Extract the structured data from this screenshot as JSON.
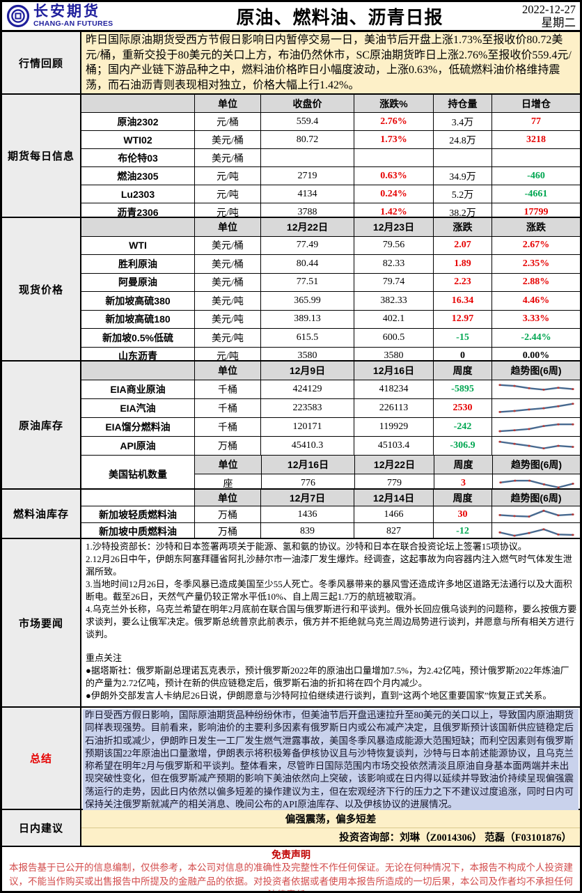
{
  "meta": {
    "brand_name": "长安期货",
    "brand_name_en": "CHANG-AN FUTURES",
    "title": "原油、燃料油、沥青日报",
    "date": "2022-12-27",
    "weekday": "星期二"
  },
  "colors": {
    "up_red": "#e60000",
    "down_green": "#00a651",
    "brand_blue": "#1f1f9c",
    "yellow_bg": "#fdf0c8",
    "header_grey": "#d9d9d9",
    "summary_highlight": "#c9d2ec",
    "spark_line": "#47698f",
    "spark_marker": "#b03a3a",
    "disclaimer_red": "#c00000"
  },
  "review": {
    "label": "行情回顾",
    "text": "昨日国际原油期货受西方节假日影响日内暂停交易一日，美油节后开盘上涨1.73%至报收价80.72美元/桶，重新交投于80美元的关口上方，布油仍然休市，SC原油期货昨日上涨2.76%至报收价559.4元/桶；国内产业链下游品种之中，燃料油价格昨日小幅度波动，上涨0.63%，低硫燃料油价格维持震荡，而石油沥青则表现相对独立，价格大幅上行1.42%。"
  },
  "futures": {
    "label": "期货每日信息",
    "rows": [
      [
        {
          "t": "",
          "h": 1
        },
        {
          "t": "单位",
          "h": 1
        },
        {
          "t": "收盘价",
          "h": 1
        },
        {
          "t": "涨跌%",
          "h": 1
        },
        {
          "t": "持仓量",
          "h": 1
        },
        {
          "t": "日增仓",
          "h": 1
        }
      ],
      [
        {
          "t": "原油2302",
          "n": 1
        },
        {
          "t": "元/桶"
        },
        {
          "t": "559.4"
        },
        {
          "t": "2.76%",
          "c": "up"
        },
        {
          "t": "3.4万"
        },
        {
          "t": "77",
          "c": "up"
        }
      ],
      [
        {
          "t": "WTI02",
          "n": 1
        },
        {
          "t": "美元/桶"
        },
        {
          "t": "80.72"
        },
        {
          "t": "1.73%",
          "c": "up"
        },
        {
          "t": "24.8万"
        },
        {
          "t": "3218",
          "c": "up"
        }
      ],
      [
        {
          "t": "布伦特03",
          "n": 1
        },
        {
          "t": "美元/桶"
        },
        {
          "t": ""
        },
        {
          "t": ""
        },
        {
          "t": ""
        },
        {
          "t": ""
        }
      ],
      [
        {
          "t": "燃油2305",
          "n": 1
        },
        {
          "t": "元/吨"
        },
        {
          "t": "2719"
        },
        {
          "t": "0.63%",
          "c": "up"
        },
        {
          "t": "34.9万"
        },
        {
          "t": "-460",
          "c": "down"
        }
      ],
      [
        {
          "t": "Lu2303",
          "n": 1
        },
        {
          "t": "元/吨"
        },
        {
          "t": "4134"
        },
        {
          "t": "0.24%",
          "c": "up"
        },
        {
          "t": "5.2万"
        },
        {
          "t": "-4661",
          "c": "down"
        }
      ],
      [
        {
          "t": "沥青2306",
          "n": 1
        },
        {
          "t": "元/吨"
        },
        {
          "t": "3788"
        },
        {
          "t": "1.42%",
          "c": "up"
        },
        {
          "t": "38.2万"
        },
        {
          "t": "17799",
          "c": "up"
        }
      ]
    ]
  },
  "spot": {
    "label": "现货价格",
    "rows": [
      [
        {
          "t": "",
          "h": 1
        },
        {
          "t": "单位",
          "h": 1
        },
        {
          "t": "12月22日",
          "h": 1
        },
        {
          "t": "12月23日",
          "h": 1
        },
        {
          "t": "涨跌",
          "h": 1
        },
        {
          "t": "涨跌",
          "h": 1
        }
      ],
      [
        {
          "t": "WTI",
          "n": 1
        },
        {
          "t": "美元/桶"
        },
        {
          "t": "77.49"
        },
        {
          "t": "79.56"
        },
        {
          "t": "2.07",
          "c": "up"
        },
        {
          "t": "2.67%",
          "c": "up"
        }
      ],
      [
        {
          "t": "胜利原油",
          "n": 1
        },
        {
          "t": "美元/桶"
        },
        {
          "t": "80.44"
        },
        {
          "t": "82.33"
        },
        {
          "t": "1.89",
          "c": "up"
        },
        {
          "t": "2.35%",
          "c": "up"
        }
      ],
      [
        {
          "t": "阿曼原油",
          "n": 1
        },
        {
          "t": "美元/桶"
        },
        {
          "t": "77.51"
        },
        {
          "t": "79.74"
        },
        {
          "t": "2.23",
          "c": "up"
        },
        {
          "t": "2.88%",
          "c": "up"
        }
      ],
      [
        {
          "t": "新加坡高硫380",
          "n": 1
        },
        {
          "t": "美元/吨"
        },
        {
          "t": "365.99"
        },
        {
          "t": "382.33"
        },
        {
          "t": "16.34",
          "c": "up"
        },
        {
          "t": "4.46%",
          "c": "up"
        }
      ],
      [
        {
          "t": "新加坡高硫180",
          "n": 1
        },
        {
          "t": "美元/吨"
        },
        {
          "t": "389.13"
        },
        {
          "t": "402.1"
        },
        {
          "t": "12.97",
          "c": "up"
        },
        {
          "t": "3.33%",
          "c": "up"
        }
      ],
      [
        {
          "t": "新加坡0.5%低硫",
          "n": 1
        },
        {
          "t": "美元/吨"
        },
        {
          "t": "615.5"
        },
        {
          "t": "600.5"
        },
        {
          "t": "-15",
          "c": "down"
        },
        {
          "t": "-2.44%",
          "c": "down"
        }
      ],
      [
        {
          "t": "山东沥青",
          "n": 1
        },
        {
          "t": "元/吨"
        },
        {
          "t": "3580"
        },
        {
          "t": "3580"
        },
        {
          "t": "0",
          "c": "flat"
        },
        {
          "t": "0.00%",
          "c": "flat"
        }
      ]
    ]
  },
  "crude_inventory": {
    "label": "原油库存",
    "rows": [
      [
        {
          "t": "",
          "h": 1
        },
        {
          "t": "单位",
          "h": 1
        },
        {
          "t": "12月9日",
          "h": 1
        },
        {
          "t": "12月16日",
          "h": 1
        },
        {
          "t": "周度",
          "h": 1
        },
        {
          "t": "趋势图(6周)",
          "h": 1
        }
      ],
      [
        {
          "t": "EIA商业原油",
          "n": 1
        },
        {
          "t": "千桶"
        },
        {
          "t": "424129"
        },
        {
          "t": "418234"
        },
        {
          "t": "-5895",
          "c": "down"
        },
        {
          "spark": [
            88,
            80,
            62,
            50,
            65,
            55
          ]
        }
      ],
      [
        {
          "t": "EIA汽油",
          "n": 1
        },
        {
          "t": "千桶"
        },
        {
          "t": "223583"
        },
        {
          "t": "226113"
        },
        {
          "t": "2530",
          "c": "up"
        },
        {
          "spark": [
            22,
            30,
            42,
            52,
            68,
            88
          ]
        }
      ],
      [
        {
          "t": "EIA馏分燃料油",
          "n": 1
        },
        {
          "t": "千桶"
        },
        {
          "t": "120171"
        },
        {
          "t": "119929"
        },
        {
          "t": "-242",
          "c": "down"
        },
        {
          "spark": [
            18,
            26,
            36,
            60,
            74,
            74
          ]
        }
      ],
      [
        {
          "t": "API原油",
          "n": 1
        },
        {
          "t": "万桶"
        },
        {
          "t": "45410.3"
        },
        {
          "t": "45103.4"
        },
        {
          "t": "-306.9",
          "c": "down"
        },
        {
          "spark": [
            85,
            68,
            52,
            32,
            52,
            44
          ]
        }
      ]
    ],
    "rigs_name": "美国钻机数量",
    "rigs_rows": [
      [
        {
          "t": "单位",
          "h": 1
        },
        {
          "t": "12月16日",
          "h": 1
        },
        {
          "t": "12月22日",
          "h": 1
        },
        {
          "t": "周度",
          "h": 1
        },
        {
          "t": "趋势图(6周)",
          "h": 1
        }
      ],
      [
        {
          "t": "座"
        },
        {
          "t": "776"
        },
        {
          "t": "779"
        },
        {
          "t": "3",
          "c": "up"
        },
        {
          "spark": [
            60,
            75,
            75,
            45,
            20,
            50
          ]
        }
      ]
    ]
  },
  "fuel_inventory": {
    "label": "燃料油库存",
    "rows": [
      [
        {
          "t": "",
          "w": 1
        },
        {
          "t": "单位",
          "h": 1
        },
        {
          "t": "12月7日",
          "h": 1
        },
        {
          "t": "12月14日",
          "h": 1
        },
        {
          "t": "周度",
          "h": 1
        },
        {
          "t": "趋势图(6周)",
          "h": 1
        }
      ],
      [
        {
          "t": "新加坡轻质燃料油",
          "n": 1
        },
        {
          "t": "万桶"
        },
        {
          "t": "1436"
        },
        {
          "t": "1466"
        },
        {
          "t": "30",
          "c": "up"
        },
        {
          "spark": [
            50,
            42,
            38,
            85,
            48,
            55
          ]
        }
      ],
      [
        {
          "t": "新加坡中质燃料油",
          "n": 1
        },
        {
          "t": "万桶"
        },
        {
          "t": "839"
        },
        {
          "t": "827"
        },
        {
          "t": "-12",
          "c": "down"
        },
        {
          "spark": [
            45,
            18,
            40,
            70,
            28,
            25
          ]
        }
      ]
    ]
  },
  "news": {
    "label": "市场要闻",
    "items": [
      "1.沙特投资部长：沙特和日本签署两项关于能源、氢和氨的协议。沙特和日本在联合投资论坛上签署15项协议。",
      "2.12月26日中午，伊朗东阿塞拜疆省阿扎沙赫尔市一油漆厂发生爆炸。经调查，这起事故为向容器内注入燃气时气体发生泄漏所致。",
      "3.当地时间12月26日，冬季风暴已造成美国至少55人死亡。冬季风暴带来的暴风雪还造成许多地区道路无法通行以及大面积断电。截至26日，天然气产量仍较正常水平低10%、自上周三起1.7万的航班被取消。",
      "4.乌克兰外长称，乌克兰希望在明年2月底前在联合国与俄罗斯进行和平谈判。俄外长回应俄乌谈判的问题称，要么按俄方要求谈判，要么让俄军决定。俄罗斯总统普京此前表示，俄方并不拒绝就乌克兰周边局势进行谈判，并愿意与所有相关方进行谈判。"
    ],
    "focus_title": "重点关注",
    "focus_items": [
      "●据塔斯社：俄罗斯副总理诺瓦克表示，预计俄罗斯2022年的原油出口量增加7.5%，为2.42亿吨，预计俄罗斯2022年炼油厂的产量为2.72亿吨，预计在新的供应链稳定后，俄罗斯石油的折扣将在四个月内减少。",
      "●伊朗外交部发言人卡纳尼26日说，伊朗愿意与沙特阿拉伯继续进行谈判，直到“这两个地区重要国家”恢复正式关系。"
    ]
  },
  "summary": {
    "label": "总结",
    "text": "昨日受西方假日影响，国际原油期货品种纷纷休市，但美油节后开盘迅速拉升至80美元的关口以上，导致国内原油期货同样表现强势。目前看来，影响油价的主要利多因素有俄罗斯日内或公布减产决定，且俄罗斯预计该国新供应链稳定后石油折扣或减少，伊朗昨日发生一工厂发生燃气泄露事故，美国冬季风暴造成能源大范围短缺；而利空因素则有俄罗斯预期该国22年原油出口量激增，伊朗表示将积极筹备伊核协议且与沙特恢复谈判，沙特与日本前述能源协议，且乌克兰称希望在明年2月与俄罗斯和平谈判。整体看来，尽管昨日国际范围内市场交投依然清淡且原油自身基本面两端并未出现突破性变化，但在俄罗斯减产预期的影响下美油依然向上突破，该影响或在日内得以延续并导致油价持续呈现偏强震荡运行的走势，因此日内依然以偏多短差的操作建议为主，但在宏观经济下行的压力之下不建议过度追涨，同时日内可保持关注俄罗斯就减产的相关消息、晚间公布的API原油库存、以及伊核协议的进展情况。"
  },
  "advice": {
    "label": "日内建议",
    "line1": "偏强震荡，偏多短差",
    "line2": "投资咨询部：刘琳（Z0014306） 范磊（F03101876）"
  },
  "disclaimer": {
    "title": "免责声明",
    "text": "本报告基于已公开的信息编制，仅供参考，本公司对信息的准确性及完整性不作任何保证。无论在何种情况下，本报告不构成个人投资建议，不能当作购买或出售报告中所提及的金融产品的依据。对投资者依据或者使用本报告所造成的一切后果，本公司及作者均不承担任何法律责任。"
  }
}
